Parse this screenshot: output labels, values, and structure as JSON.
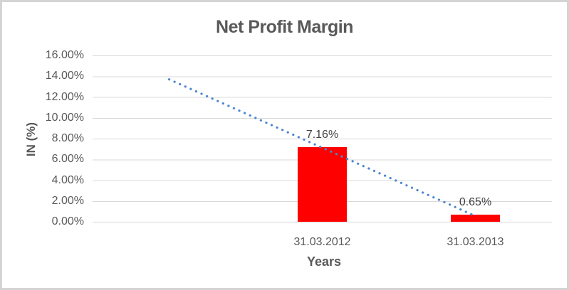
{
  "window": {
    "background": "#FFFFFF",
    "border_color": "#D4D4D4"
  },
  "chart_data": {
    "type": "bar",
    "title": "Net Profit Margin",
    "xlabel": "Years",
    "ylabel": "IN (%)",
    "categories": [
      "31.03.2012",
      "31.03.2013"
    ],
    "values": [
      7.16,
      0.65
    ],
    "data_labels": [
      "7.16%",
      "0.65%"
    ],
    "y_ticks": [
      "0.00%",
      "2.00%",
      "4.00%",
      "6.00%",
      "8.00%",
      "10.00%",
      "12.00%",
      "14.00%",
      "16.00%"
    ],
    "ylim": [
      0,
      16
    ],
    "grid": true,
    "legend": "none",
    "bar_color": "#FF0000",
    "gridline_color": "#D9D9D9",
    "axis_text_color": "#595959",
    "data_label_color": "#404040",
    "trendline": {
      "style": "dotted",
      "color": "#4A86D0",
      "x_units": [
        -1,
        1
      ],
      "values_pct": [
        13.7,
        0.55
      ]
    }
  }
}
